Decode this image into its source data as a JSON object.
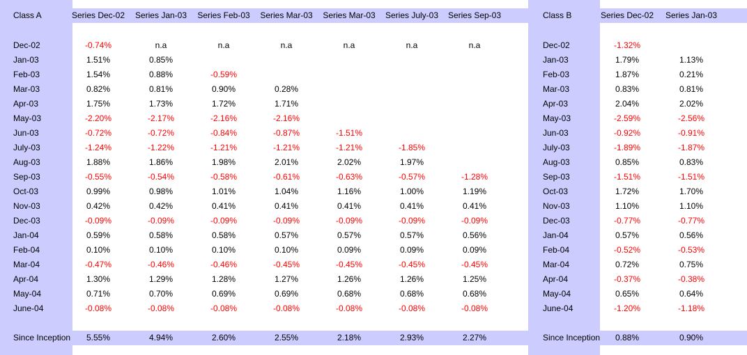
{
  "colors": {
    "band": "#ccccff",
    "negative": "#ff0000",
    "positive": "#000000"
  },
  "row_labels": [
    "Dec-02",
    "Jan-03",
    "Feb-03",
    "Mar-03",
    "Apr-03",
    "May-03",
    "Jun-03",
    "July-03",
    "Aug-03",
    "Sep-03",
    "Oct-03",
    "Nov-03",
    "Dec-03",
    "Jan-04",
    "Feb-04",
    "Mar-04",
    "Apr-04",
    "May-04",
    "June-04"
  ],
  "summary_label": "Since Inception",
  "class_a": {
    "title": "Class A",
    "columns": [
      "Series Dec-02",
      "Series Jan-03",
      "Series Feb-03",
      "Series Mar-03",
      "Series Mar-03",
      "Series July-03",
      "Series Sep-03"
    ],
    "rows": [
      [
        "-0.74%",
        "n.a",
        "n.a",
        "n.a",
        "n.a",
        "n.a",
        "n.a"
      ],
      [
        "1.51%",
        "0.85%",
        "",
        "",
        "",
        "",
        ""
      ],
      [
        "1.54%",
        "0.88%",
        "-0.59%",
        "",
        "",
        "",
        ""
      ],
      [
        "0.82%",
        "0.81%",
        "0.90%",
        "0.28%",
        "",
        "",
        ""
      ],
      [
        "1.75%",
        "1.73%",
        "1.72%",
        "1.71%",
        "",
        "",
        ""
      ],
      [
        "-2.20%",
        "-2.17%",
        "-2.16%",
        "-2.16%",
        "",
        "",
        ""
      ],
      [
        "-0.72%",
        "-0.72%",
        "-0.84%",
        "-0.87%",
        "-1.51%",
        "",
        ""
      ],
      [
        "-1.24%",
        "-1.22%",
        "-1.21%",
        "-1.21%",
        "-1.21%",
        "-1.85%",
        ""
      ],
      [
        "1.88%",
        "1.86%",
        "1.98%",
        "2.01%",
        "2.02%",
        "1.97%",
        ""
      ],
      [
        "-0.55%",
        "-0.54%",
        "-0.58%",
        "-0.61%",
        "-0.63%",
        "-0.57%",
        "-1.28%"
      ],
      [
        "0.99%",
        "0.98%",
        "1.01%",
        "1.04%",
        "1.16%",
        "1.00%",
        "1.19%"
      ],
      [
        "0.42%",
        "0.42%",
        "0.41%",
        "0.41%",
        "0.41%",
        "0.41%",
        "0.41%"
      ],
      [
        "-0.09%",
        "-0.09%",
        "-0.09%",
        "-0.09%",
        "-0.09%",
        "-0.09%",
        "-0.09%"
      ],
      [
        "0.59%",
        "0.58%",
        "0.58%",
        "0.57%",
        "0.57%",
        "0.57%",
        "0.56%"
      ],
      [
        "0.10%",
        "0.10%",
        "0.10%",
        "0.10%",
        "0.09%",
        "0.09%",
        "0.09%"
      ],
      [
        "-0.47%",
        "-0.46%",
        "-0.46%",
        "-0.45%",
        "-0.45%",
        "-0.45%",
        "-0.45%"
      ],
      [
        "1.30%",
        "1.29%",
        "1.28%",
        "1.27%",
        "1.26%",
        "1.26%",
        "1.25%"
      ],
      [
        "0.71%",
        "0.70%",
        "0.69%",
        "0.69%",
        "0.68%",
        "0.68%",
        "0.68%"
      ],
      [
        "-0.08%",
        "-0.08%",
        "-0.08%",
        "-0.08%",
        "-0.08%",
        "-0.08%",
        "-0.08%"
      ]
    ],
    "since_inception": [
      "5.55%",
      "4.94%",
      "2.60%",
      "2.55%",
      "2.18%",
      "2.93%",
      "2.27%"
    ]
  },
  "class_b": {
    "title": "Class B",
    "columns": [
      "Series Dec-02",
      "Series Jan-03"
    ],
    "rows": [
      [
        "-1.32%",
        ""
      ],
      [
        "1.79%",
        "1.13%"
      ],
      [
        "1.87%",
        "0.21%"
      ],
      [
        "0.83%",
        "0.81%"
      ],
      [
        "2.04%",
        "2.02%"
      ],
      [
        "-2.59%",
        "-2.56%"
      ],
      [
        "-0.92%",
        "-0.91%"
      ],
      [
        "-1.89%",
        "-1.87%"
      ],
      [
        "0.85%",
        "0.83%"
      ],
      [
        "-1.51%",
        "-1.51%"
      ],
      [
        "1.72%",
        "1.70%"
      ],
      [
        "1.10%",
        "1.10%"
      ],
      [
        "-0.77%",
        "-0.77%"
      ],
      [
        "0.57%",
        "0.56%"
      ],
      [
        "-0.52%",
        "-0.53%"
      ],
      [
        "0.72%",
        "0.75%"
      ],
      [
        "-0.37%",
        "-0.38%"
      ],
      [
        "0.65%",
        "0.64%"
      ],
      [
        "-1.20%",
        "-1.18%"
      ]
    ],
    "since_inception": [
      "0.88%",
      "0.90%"
    ]
  }
}
